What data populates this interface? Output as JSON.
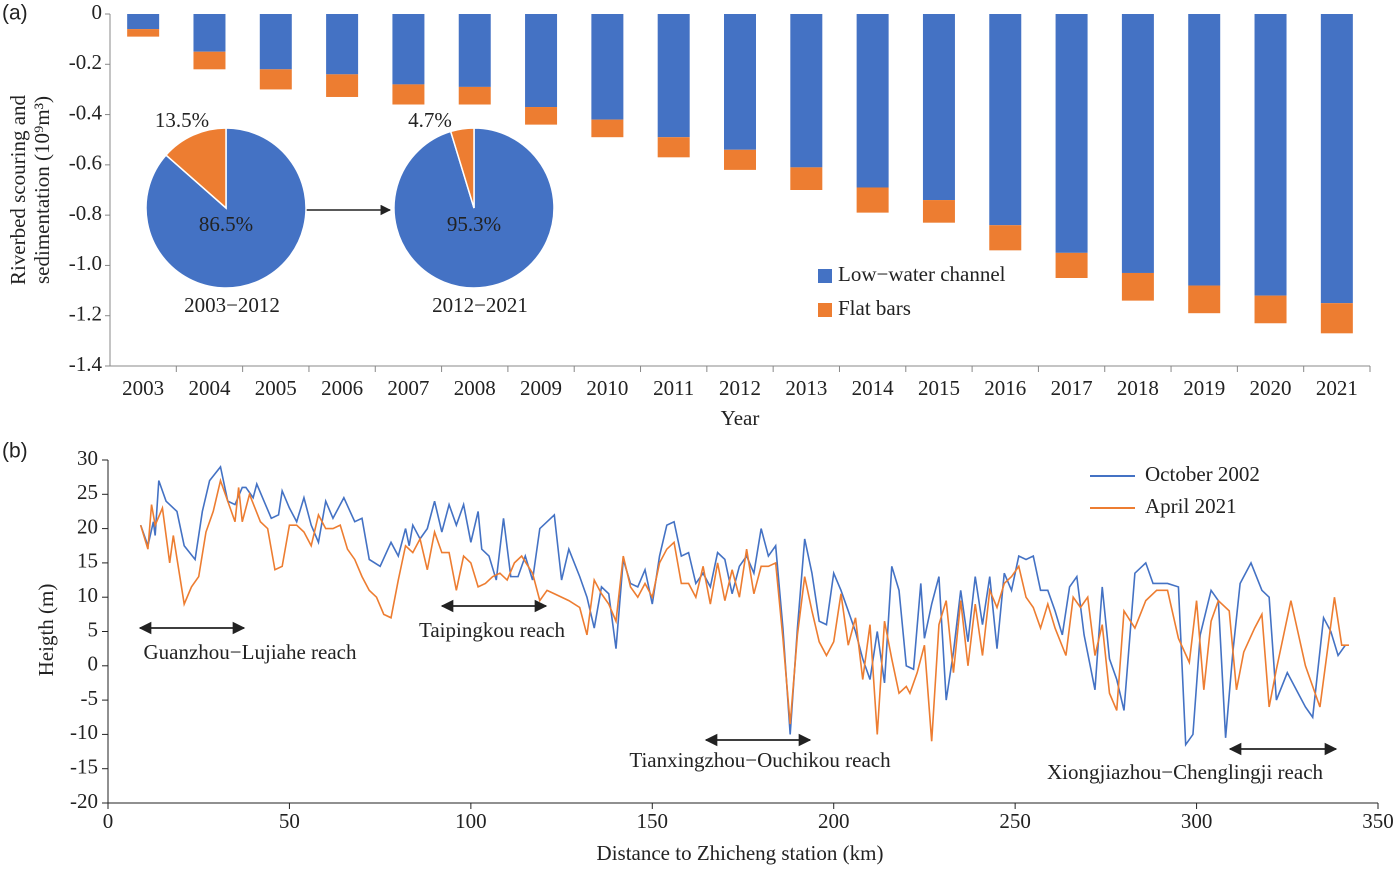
{
  "chart_data": [
    {
      "type": "bar",
      "stacked": true,
      "panel_label": "(a)",
      "xlabel": "Year",
      "ylabel": [
        "Riverbed scouring and",
        "sedimentation (10⁹m³)"
      ],
      "categories": [
        "2003",
        "2004",
        "2005",
        "2006",
        "2007",
        "2008",
        "2009",
        "2010",
        "2011",
        "2012",
        "2013",
        "2014",
        "2015",
        "2016",
        "2017",
        "2018",
        "2019",
        "2020",
        "2021"
      ],
      "series": [
        {
          "name": "Low−water channel",
          "color": "#4472c4",
          "values": [
            -0.06,
            -0.15,
            -0.22,
            -0.24,
            -0.28,
            -0.29,
            -0.37,
            -0.42,
            -0.49,
            -0.54,
            -0.61,
            -0.69,
            -0.74,
            -0.84,
            -0.95,
            -1.03,
            -1.08,
            -1.12,
            -1.15
          ]
        },
        {
          "name": "Flat bars",
          "color": "#ed7d31",
          "values": [
            -0.03,
            -0.07,
            -0.08,
            -0.09,
            -0.08,
            -0.07,
            -0.07,
            -0.07,
            -0.08,
            -0.08,
            -0.09,
            -0.1,
            -0.09,
            -0.1,
            -0.1,
            -0.11,
            -0.11,
            -0.11,
            -0.12
          ]
        }
      ],
      "ylim": [
        -1.4,
        0
      ],
      "yticks": [
        0,
        -0.2,
        -0.4,
        -0.6,
        -0.8,
        {
          "value": -1,
          "label": "-1.0"
        },
        -1.2,
        -1.4
      ],
      "legend": "lower right"
    },
    {
      "type": "pie",
      "label": "2003−2012",
      "values": [
        86.5,
        13.5
      ],
      "value_labels": [
        "86.5%",
        "13.5%"
      ],
      "colors": [
        "#4472c4",
        "#ed7d31"
      ]
    },
    {
      "type": "pie",
      "label": "2012−2021",
      "values": [
        95.3,
        4.7
      ],
      "value_labels": [
        "95.3%",
        "4.7%"
      ],
      "colors": [
        "#4472c4",
        "#ed7d31"
      ]
    },
    {
      "type": "line",
      "panel_label": "(b)",
      "xlabel": "Distance to Zhicheng station (km)",
      "ylabel": "Heigth (m)",
      "series": [
        {
          "name": "October 2002",
          "color": "#4472c4",
          "x": [
            9,
            11,
            12.5,
            13,
            14,
            16,
            19,
            21,
            24,
            26,
            28,
            31,
            33,
            35,
            37,
            38,
            40,
            41,
            43,
            45,
            47,
            48,
            50,
            52,
            54,
            56,
            58,
            60,
            62,
            65,
            68,
            70,
            72,
            75,
            78,
            80,
            82,
            83,
            84,
            86,
            88,
            90,
            92,
            94,
            96,
            98,
            100,
            102,
            103,
            105,
            107,
            109,
            111,
            113,
            115,
            117,
            119,
            123,
            125,
            127,
            130,
            132,
            134,
            136,
            138,
            140,
            142,
            144,
            146,
            148,
            150,
            152,
            154,
            156,
            158,
            160,
            162,
            164,
            166,
            168,
            170,
            172,
            174,
            176,
            178,
            180,
            182,
            184,
            186,
            188,
            190,
            192,
            194,
            196,
            198,
            200,
            202,
            204,
            206,
            208,
            210,
            212,
            214,
            216,
            218,
            220,
            222,
            224,
            225,
            227,
            229,
            231,
            233,
            235,
            237,
            239,
            241,
            243,
            245,
            247,
            249,
            251,
            253,
            255,
            257,
            259,
            261,
            263,
            265,
            267,
            269,
            272,
            274,
            276,
            278,
            280,
            283,
            286,
            288,
            292,
            295,
            297,
            299,
            301,
            304,
            306,
            308,
            310,
            312,
            315,
            318,
            320,
            322,
            325,
            328,
            330,
            332,
            335,
            337,
            339,
            341
          ],
          "values": [
            20.5,
            17.5,
            21,
            19,
            27,
            24,
            22.5,
            17.5,
            15.5,
            22.5,
            27,
            29,
            24,
            23.5,
            26,
            26,
            24.5,
            26.5,
            24,
            21.5,
            22,
            25.5,
            23,
            21,
            24.5,
            20.5,
            18,
            24,
            21.5,
            24.5,
            21,
            21.5,
            15.5,
            14.5,
            18,
            16,
            20,
            17.5,
            20.5,
            18.5,
            20,
            24,
            19.5,
            23.5,
            20.5,
            23.5,
            18,
            22.5,
            17,
            16,
            12.5,
            21.5,
            13,
            13,
            16,
            12.5,
            20,
            22,
            12.5,
            17,
            13,
            10,
            5.5,
            11.5,
            10.5,
            2.5,
            15.5,
            12,
            11.5,
            14,
            9,
            16,
            20.5,
            21,
            16,
            16.5,
            12,
            13.5,
            11.5,
            16.5,
            15.5,
            10.5,
            14.5,
            16,
            13.5,
            20,
            16,
            17.5,
            5.5,
            -10,
            5.5,
            18.5,
            13.5,
            6.5,
            6,
            13.5,
            11,
            8,
            5,
            1,
            -2,
            5,
            -2.5,
            14.5,
            11,
            0,
            -0.5,
            12,
            4,
            9,
            13,
            -5,
            2,
            11,
            3.5,
            13,
            6,
            13,
            2.5,
            13.5,
            11,
            16,
            15.5,
            16,
            11,
            11,
            8,
            4.5,
            11.5,
            13,
            4.5,
            -3.5,
            11.5,
            1,
            -2,
            -6.5,
            13.5,
            15,
            12,
            12,
            11.5,
            -11.5,
            -10,
            4.5,
            11,
            9.5,
            -10.5,
            2,
            12,
            15,
            11,
            10,
            -5,
            -1,
            -4,
            -6,
            -7.5,
            7,
            5,
            1.5,
            3
          ]
        },
        {
          "name": "April 2021",
          "color": "#ed7d31",
          "x": [
            9,
            11,
            12,
            13,
            15,
            17,
            18,
            21,
            23,
            25,
            27,
            29,
            31,
            33,
            35,
            36,
            37,
            39,
            42,
            44,
            46,
            48,
            50,
            52,
            54,
            56,
            58,
            60,
            62,
            64,
            66,
            68,
            70,
            72,
            74,
            76,
            78,
            80,
            82,
            84,
            86,
            88,
            90,
            92,
            94,
            96,
            98,
            100,
            102,
            104,
            106,
            108,
            110,
            112,
            114,
            117,
            119,
            121,
            123,
            127,
            130,
            132,
            134,
            136,
            138,
            140,
            142,
            144,
            146,
            148,
            150,
            152,
            154,
            156,
            158,
            160,
            162,
            164,
            166,
            168,
            170,
            172,
            174,
            176,
            178,
            180,
            182,
            184,
            186,
            188,
            190,
            192,
            194,
            196,
            198,
            200,
            202,
            204,
            206,
            208,
            210,
            212,
            214,
            216,
            218,
            220,
            221,
            223,
            225,
            227,
            229,
            231,
            233,
            235,
            237,
            239,
            241,
            243,
            245,
            247,
            249,
            251,
            253,
            255,
            257,
            259,
            261,
            264,
            266,
            268,
            270,
            272,
            274,
            276,
            278,
            280,
            283,
            286,
            289,
            292,
            295,
            298,
            300,
            302,
            304,
            306,
            309,
            311,
            313,
            316,
            318,
            320,
            322,
            326,
            330,
            334,
            338,
            340,
            342
          ],
          "values": [
            20.5,
            17,
            23.5,
            20.5,
            23,
            15,
            19,
            9,
            11.5,
            13,
            19.5,
            22.5,
            27,
            24,
            21,
            26,
            21,
            25,
            21,
            20,
            14,
            14.5,
            20.5,
            20.5,
            19.5,
            17.5,
            22,
            20,
            20,
            20.5,
            17,
            15.5,
            13,
            11,
            10,
            7.5,
            7,
            12.5,
            17.5,
            16.5,
            18.5,
            14,
            19.5,
            16.5,
            16.5,
            11,
            16,
            15,
            11.5,
            12,
            13,
            13.5,
            12.5,
            15,
            16,
            13.5,
            9.5,
            11,
            10.5,
            9.5,
            8.5,
            4.5,
            12.5,
            10.5,
            9,
            6.5,
            16,
            11.5,
            10,
            12,
            10,
            15,
            17,
            18,
            12,
            12,
            10,
            14.5,
            9,
            15,
            9.5,
            14,
            10,
            17,
            10.5,
            14.5,
            14.5,
            15,
            4,
            -8.5,
            4.5,
            13,
            8,
            3.5,
            1.5,
            3.5,
            10.5,
            3,
            7,
            -2,
            6,
            -10,
            6.5,
            1,
            -4,
            -3,
            -4,
            -1,
            3,
            -11,
            6,
            9.5,
            -1,
            9.5,
            0,
            9,
            1.5,
            11,
            8.5,
            12,
            13,
            14.5,
            10,
            8.5,
            5.5,
            9,
            5.5,
            1.5,
            10,
            8.5,
            10,
            1.5,
            6,
            -4,
            -6.5,
            8,
            5.5,
            9.5,
            11,
            11,
            4,
            0.5,
            9.5,
            -3.5,
            6.5,
            9.5,
            8,
            -3.5,
            2,
            5.5,
            7.5,
            -6,
            -0.5,
            9.5,
            0,
            -6,
            10,
            3,
            3
          ]
        }
      ],
      "xlim": [
        0,
        350
      ],
      "xticks": [
        0,
        50,
        100,
        150,
        200,
        250,
        300,
        350
      ],
      "ylim": [
        -20,
        30
      ],
      "yticks": [
        -20,
        -15,
        -10,
        -5,
        0,
        5,
        10,
        15,
        20,
        25,
        30
      ],
      "legend": "upper right",
      "annotations": [
        "Guanzhou−Lujiahe reach",
        "Taipingkou reach",
        "Tianxingzhou−Ouchikou reach",
        "Xiongjiazhou−Chenglingji reach"
      ]
    }
  ]
}
